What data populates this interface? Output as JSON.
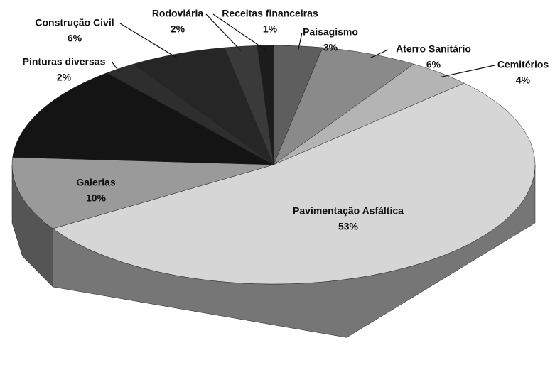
{
  "chart_data": {
    "type": "pie",
    "categories": [
      "Paisagismo",
      "Aterro Sanitário",
      "Cemitérios",
      "Pavimentação Asfáltica",
      "Galerias",
      null,
      "Pinturas diversas",
      "Construção Civil",
      "Rodoviária",
      "Receitas financeiras"
    ],
    "values": [
      3,
      6,
      4,
      53,
      10,
      13,
      2,
      6,
      2,
      1
    ],
    "value_labels": [
      "3%",
      "6%",
      "4%",
      "53%",
      "10%",
      null,
      "2%",
      "6%",
      "2%",
      "1%"
    ],
    "colors": [
      "#5e5e5e",
      "#8a8a8a",
      "#b4b4b4",
      "#d6d6d6",
      "#9a9a9a",
      "#141414",
      "#2e2e2e",
      "#262626",
      "#3a3a3a",
      "#1c1c1c"
    ]
  }
}
